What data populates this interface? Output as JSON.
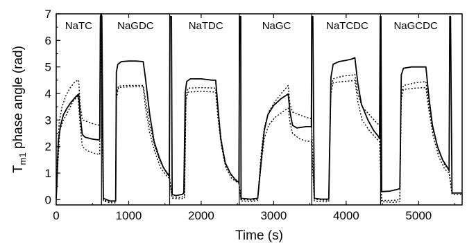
{
  "chart_data": {
    "type": "line",
    "xlabel": "Time (s)",
    "ylabel_main": "T",
    "ylabel_sub": "m1",
    "ylabel_rest": " phase angle (rad)",
    "xlim": [
      0,
      5600
    ],
    "ylim": [
      -0.2,
      7
    ],
    "x_ticks": [
      0,
      1000,
      2000,
      3000,
      4000,
      5000
    ],
    "y_ticks": [
      0,
      1,
      2,
      3,
      4,
      5,
      6,
      7
    ],
    "grid": false,
    "legend": "none",
    "segments": [
      {
        "label": "NaTC",
        "start": 0,
        "end": 620,
        "label_x": 310
      },
      {
        "label": "NaGDC",
        "start": 630,
        "end": 1560,
        "label_x": 1095
      },
      {
        "label": "NaTDC",
        "start": 1600,
        "end": 2520,
        "label_x": 2065
      },
      {
        "label": "NaGC",
        "start": 2540,
        "end": 3520,
        "label_x": 3040
      },
      {
        "label": "NaTCDC",
        "start": 3560,
        "end": 4470,
        "label_x": 4015
      },
      {
        "label": "NaGCDC",
        "start": 4470,
        "end": 5430,
        "label_x": 4960
      }
    ],
    "series": [
      {
        "style": "solid",
        "points": [
          [
            0,
            0.05
          ],
          [
            10,
            0.6
          ],
          [
            30,
            2.2
          ],
          [
            60,
            2.8
          ],
          [
            100,
            3.2
          ],
          [
            150,
            3.45
          ],
          [
            200,
            3.65
          ],
          [
            260,
            3.85
          ],
          [
            310,
            3.98
          ],
          [
            330,
            3.2
          ],
          [
            360,
            2.45
          ],
          [
            400,
            2.35
          ],
          [
            500,
            2.28
          ],
          [
            590,
            2.25
          ],
          [
            600,
            2.3
          ],
          [
            610,
            6.9
          ],
          [
            620,
            7
          ],
          [
            630,
            6.9
          ],
          [
            650,
            0.05
          ],
          [
            740,
            -0.05
          ],
          [
            820,
            -0.05
          ],
          [
            830,
            4.8
          ],
          [
            850,
            5.1
          ],
          [
            900,
            5.2
          ],
          [
            1000,
            5.22
          ],
          [
            1100,
            5.22
          ],
          [
            1200,
            5.2
          ],
          [
            1230,
            4.6
          ],
          [
            1290,
            3.2
          ],
          [
            1350,
            2.2
          ],
          [
            1420,
            1.6
          ],
          [
            1480,
            1.2
          ],
          [
            1540,
            0.95
          ],
          [
            1560,
            0.9
          ],
          [
            1570,
            6.9
          ],
          [
            1590,
            6.9
          ],
          [
            1600,
            0.2
          ],
          [
            1650,
            0.15
          ],
          [
            1740,
            0.2
          ],
          [
            1760,
            0.25
          ],
          [
            1780,
            4.0
          ],
          [
            1800,
            4.45
          ],
          [
            1850,
            4.55
          ],
          [
            2000,
            4.55
          ],
          [
            2150,
            4.5
          ],
          [
            2200,
            4.5
          ],
          [
            2230,
            3.5
          ],
          [
            2270,
            2.3
          ],
          [
            2330,
            1.4
          ],
          [
            2400,
            1.0
          ],
          [
            2470,
            0.75
          ],
          [
            2520,
            0.65
          ],
          [
            2530,
            6.9
          ],
          [
            2545,
            6.9
          ],
          [
            2550,
            0.05
          ],
          [
            2680,
            0.02
          ],
          [
            2780,
            0.05
          ],
          [
            2830,
            1.5
          ],
          [
            2870,
            2.6
          ],
          [
            2920,
            3.2
          ],
          [
            3000,
            3.55
          ],
          [
            3100,
            3.8
          ],
          [
            3200,
            3.98
          ],
          [
            3225,
            3.3
          ],
          [
            3260,
            2.8
          ],
          [
            3320,
            2.7
          ],
          [
            3450,
            2.75
          ],
          [
            3520,
            2.75
          ],
          [
            3525,
            6.9
          ],
          [
            3540,
            6.9
          ],
          [
            3560,
            0.05
          ],
          [
            3650,
            0.02
          ],
          [
            3760,
            0.02
          ],
          [
            3790,
            4.6
          ],
          [
            3820,
            5.1
          ],
          [
            3900,
            5.2
          ],
          [
            4000,
            5.25
          ],
          [
            4080,
            5.3
          ],
          [
            4120,
            5.35
          ],
          [
            4160,
            4.4
          ],
          [
            4210,
            3.6
          ],
          [
            4300,
            3.0
          ],
          [
            4380,
            2.6
          ],
          [
            4440,
            2.4
          ],
          [
            4460,
            2.3
          ],
          [
            4470,
            6.9
          ],
          [
            4480,
            6.9
          ],
          [
            4490,
            0.3
          ],
          [
            4600,
            0.32
          ],
          [
            4700,
            0.38
          ],
          [
            4740,
            0.42
          ],
          [
            4760,
            4.7
          ],
          [
            4790,
            4.95
          ],
          [
            4900,
            5.0
          ],
          [
            5000,
            5.0
          ],
          [
            5100,
            5.0
          ],
          [
            5140,
            3.9
          ],
          [
            5190,
            2.8
          ],
          [
            5260,
            2.0
          ],
          [
            5330,
            1.5
          ],
          [
            5400,
            1.2
          ],
          [
            5420,
            1.1
          ],
          [
            5430,
            6.9
          ],
          [
            5440,
            6.9
          ],
          [
            5460,
            0.25
          ],
          [
            5600,
            0.25
          ]
        ]
      },
      {
        "style": "dotted",
        "points": [
          [
            0,
            0.05
          ],
          [
            15,
            1.5
          ],
          [
            40,
            2.9
          ],
          [
            80,
            3.5
          ],
          [
            130,
            3.9
          ],
          [
            190,
            4.2
          ],
          [
            260,
            4.45
          ],
          [
            310,
            4.5
          ],
          [
            330,
            3.6
          ],
          [
            360,
            3.0
          ],
          [
            420,
            2.95
          ],
          [
            520,
            2.85
          ],
          [
            600,
            2.8
          ],
          [
            610,
            6.9
          ],
          [
            650,
            -0.02
          ],
          [
            740,
            -0.07
          ],
          [
            820,
            -0.07
          ],
          [
            830,
            4.0
          ],
          [
            860,
            4.28
          ],
          [
            1000,
            4.3
          ],
          [
            1200,
            4.3
          ],
          [
            1230,
            3.8
          ],
          [
            1290,
            2.8
          ],
          [
            1360,
            2.0
          ],
          [
            1440,
            1.4
          ],
          [
            1520,
            1.05
          ],
          [
            1560,
            0.9
          ],
          [
            1600,
            0.1
          ],
          [
            1700,
            0.08
          ],
          [
            1770,
            0.12
          ],
          [
            1790,
            3.9
          ],
          [
            1820,
            4.2
          ],
          [
            2000,
            4.22
          ],
          [
            2200,
            4.2
          ],
          [
            2230,
            3.3
          ],
          [
            2280,
            2.2
          ],
          [
            2340,
            1.3
          ],
          [
            2420,
            0.9
          ],
          [
            2520,
            0.65
          ],
          [
            2550,
            0.0
          ],
          [
            2700,
            -0.02
          ],
          [
            2780,
            0.02
          ],
          [
            2830,
            1.8
          ],
          [
            2870,
            2.7
          ],
          [
            2930,
            3.3
          ],
          [
            3020,
            3.7
          ],
          [
            3120,
            4.05
          ],
          [
            3200,
            4.3
          ],
          [
            3225,
            3.6
          ],
          [
            3260,
            3.3
          ],
          [
            3350,
            3.2
          ],
          [
            3450,
            3.1
          ],
          [
            3520,
            3.05
          ],
          [
            3560,
            0.02
          ],
          [
            3680,
            -0.02
          ],
          [
            3760,
            -0.02
          ],
          [
            3790,
            4.2
          ],
          [
            3820,
            4.55
          ],
          [
            3950,
            4.65
          ],
          [
            4100,
            4.7
          ],
          [
            4120,
            4.72
          ],
          [
            4160,
            4.0
          ],
          [
            4220,
            3.5
          ],
          [
            4320,
            3.2
          ],
          [
            4420,
            2.9
          ],
          [
            4460,
            2.8
          ],
          [
            4490,
            -0.03
          ],
          [
            4650,
            -0.03
          ],
          [
            4740,
            0.0
          ],
          [
            4760,
            4.0
          ],
          [
            4790,
            4.3
          ],
          [
            4950,
            4.4
          ],
          [
            5100,
            4.45
          ],
          [
            5140,
            3.6
          ],
          [
            5200,
            2.6
          ],
          [
            5280,
            1.8
          ],
          [
            5360,
            1.3
          ],
          [
            5420,
            1.1
          ],
          [
            5460,
            0.25
          ],
          [
            5600,
            0.25
          ]
        ]
      },
      {
        "style": "dotted",
        "points": [
          [
            0,
            0.05
          ],
          [
            20,
            1.2
          ],
          [
            50,
            2.6
          ],
          [
            100,
            3.0
          ],
          [
            160,
            3.3
          ],
          [
            230,
            3.7
          ],
          [
            300,
            3.9
          ],
          [
            330,
            2.8
          ],
          [
            360,
            2.0
          ],
          [
            420,
            1.85
          ],
          [
            520,
            1.75
          ],
          [
            600,
            1.7
          ],
          [
            610,
            6.9
          ],
          [
            650,
            -0.05
          ],
          [
            740,
            -0.12
          ],
          [
            820,
            -0.12
          ],
          [
            830,
            3.8
          ],
          [
            860,
            4.22
          ],
          [
            1000,
            4.25
          ],
          [
            1200,
            4.25
          ],
          [
            1230,
            3.5
          ],
          [
            1290,
            2.5
          ],
          [
            1360,
            1.8
          ],
          [
            1440,
            1.2
          ],
          [
            1520,
            0.9
          ],
          [
            1560,
            0.8
          ],
          [
            1600,
            0.05
          ],
          [
            1700,
            0.03
          ],
          [
            1770,
            0.05
          ],
          [
            1790,
            3.8
          ],
          [
            1820,
            4.05
          ],
          [
            2000,
            4.08
          ],
          [
            2200,
            4.05
          ],
          [
            2230,
            3.1
          ],
          [
            2280,
            2.0
          ],
          [
            2340,
            1.2
          ],
          [
            2420,
            0.8
          ],
          [
            2520,
            0.6
          ],
          [
            2550,
            -0.05
          ],
          [
            2700,
            -0.07
          ],
          [
            2780,
            -0.03
          ],
          [
            2830,
            1.4
          ],
          [
            2870,
            2.3
          ],
          [
            2930,
            2.8
          ],
          [
            3020,
            3.1
          ],
          [
            3120,
            3.3
          ],
          [
            3200,
            3.45
          ],
          [
            3225,
            2.9
          ],
          [
            3260,
            2.5
          ],
          [
            3350,
            2.3
          ],
          [
            3450,
            2.2
          ],
          [
            3520,
            2.2
          ],
          [
            3560,
            -0.05
          ],
          [
            3680,
            -0.08
          ],
          [
            3760,
            -0.08
          ],
          [
            3790,
            4.0
          ],
          [
            3820,
            4.4
          ],
          [
            3950,
            4.45
          ],
          [
            4100,
            4.48
          ],
          [
            4120,
            4.5
          ],
          [
            4160,
            3.7
          ],
          [
            4220,
            3.0
          ],
          [
            4320,
            2.6
          ],
          [
            4420,
            2.3
          ],
          [
            4460,
            2.2
          ],
          [
            4490,
            -0.08
          ],
          [
            4650,
            -0.1
          ],
          [
            4740,
            -0.08
          ],
          [
            4760,
            3.8
          ],
          [
            4790,
            4.15
          ],
          [
            4950,
            4.2
          ],
          [
            5100,
            4.22
          ],
          [
            5140,
            3.4
          ],
          [
            5200,
            2.4
          ],
          [
            5280,
            1.6
          ],
          [
            5360,
            1.15
          ],
          [
            5420,
            1.0
          ],
          [
            5460,
            0.2
          ],
          [
            5600,
            0.2
          ]
        ]
      }
    ]
  }
}
